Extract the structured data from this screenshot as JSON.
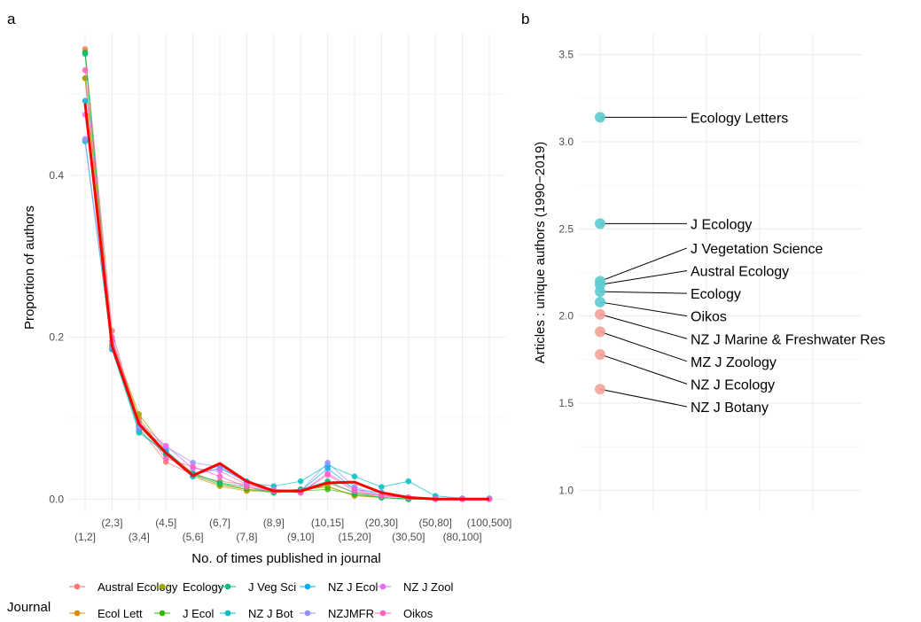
{
  "panel_a_label": "a",
  "panel_b_label": "b",
  "legend_title": "Journal",
  "chart_data": [
    {
      "type": "line",
      "xlabel": "No. of times published in journal",
      "ylabel": "Proportion of authors",
      "categories": [
        "(1,2]",
        "(2,3]",
        "(3,4]",
        "(4,5]",
        "(5,6]",
        "(6,7]",
        "(7,8]",
        "(8,9]",
        "(9,10]",
        "(10,15]",
        "(15,20]",
        "(20,30]",
        "(30,50]",
        "(50,80]",
        "(80,100]",
        "(100,500]"
      ],
      "ylim": [
        -0.015,
        0.575
      ],
      "yticks": [
        0.0,
        0.2,
        0.4
      ],
      "ytick_labels": [
        "0.0",
        "0.2",
        "0.4"
      ],
      "grid": true,
      "legend_position": "bottom",
      "series": [
        {
          "name": "Austral Ecology",
          "color": "#F8766D",
          "values": [
            0.556,
            0.208,
            0.088,
            0.046,
            0.03,
            0.022,
            0.018,
            0.01,
            0.008,
            0.02,
            0.008,
            0.004,
            0.002,
            0.0,
            0.0,
            0.0
          ]
        },
        {
          "name": "Ecol Lett",
          "color": "#D89000",
          "values": [
            0.52,
            0.195,
            0.1,
            0.055,
            0.028,
            0.016,
            0.01,
            0.01,
            0.012,
            0.016,
            0.004,
            0.002,
            0.0,
            0.0,
            0.0,
            0.0
          ]
        },
        {
          "name": "Ecology",
          "color": "#A3A500",
          "values": [
            0.52,
            0.195,
            0.105,
            0.06,
            0.032,
            0.02,
            0.012,
            0.01,
            0.012,
            0.015,
            0.005,
            0.002,
            0.0,
            0.0,
            0.0,
            0.0
          ]
        },
        {
          "name": "J Ecol",
          "color": "#39B600",
          "values": [
            0.552,
            0.19,
            0.09,
            0.055,
            0.03,
            0.018,
            0.012,
            0.008,
            0.01,
            0.012,
            0.006,
            0.002,
            0.0,
            0.0,
            0.0,
            0.0
          ]
        },
        {
          "name": "J Veg Sci",
          "color": "#00BF7D",
          "values": [
            0.55,
            0.188,
            0.085,
            0.055,
            0.032,
            0.02,
            0.015,
            0.008,
            0.012,
            0.022,
            0.008,
            0.002,
            0.0,
            0.0,
            0.0,
            0.0
          ]
        },
        {
          "name": "NZ J Bot",
          "color": "#00BFC4",
          "values": [
            0.442,
            0.185,
            0.082,
            0.058,
            0.028,
            0.042,
            0.02,
            0.016,
            0.022,
            0.042,
            0.028,
            0.015,
            0.022,
            0.004,
            0.001,
            0.001
          ]
        },
        {
          "name": "NZ J Ecol",
          "color": "#00B0F6",
          "values": [
            0.492,
            0.185,
            0.09,
            0.06,
            0.03,
            0.038,
            0.022,
            0.01,
            0.01,
            0.038,
            0.012,
            0.008,
            0.002,
            0.0,
            0.0,
            0.0
          ]
        },
        {
          "name": "NZJMFR",
          "color": "#9590FF",
          "values": [
            0.445,
            0.188,
            0.088,
            0.065,
            0.045,
            0.04,
            0.02,
            0.012,
            0.01,
            0.045,
            0.015,
            0.005,
            0.002,
            0.0,
            0.0,
            0.0
          ]
        },
        {
          "name": "NZ J Zool",
          "color": "#E76BF3",
          "values": [
            0.475,
            0.195,
            0.095,
            0.066,
            0.038,
            0.035,
            0.018,
            0.01,
            0.008,
            0.032,
            0.012,
            0.004,
            0.002,
            0.0,
            0.0,
            0.0
          ]
        },
        {
          "name": "Oikos",
          "color": "#FF62BC",
          "values": [
            0.53,
            0.2,
            0.095,
            0.05,
            0.04,
            0.028,
            0.015,
            0.01,
            0.008,
            0.03,
            0.01,
            0.004,
            0.002,
            0.0,
            0.0,
            0.0
          ]
        }
      ],
      "mean_line": {
        "color": "#FF0000",
        "values": [
          0.489,
          0.189,
          0.093,
          0.057,
          0.029,
          0.044,
          0.022,
          0.01,
          0.01,
          0.02,
          0.021,
          0.008,
          0.002,
          0.0,
          0.0,
          0.0
        ]
      }
    },
    {
      "type": "scatter",
      "ylabel": "Articles : unique authors (1990−2019)",
      "ylim": [
        0.88,
        3.62
      ],
      "yticks": [
        1.0,
        1.5,
        2.0,
        2.5,
        3.0,
        3.5
      ],
      "ytick_labels": [
        "1.0",
        "1.5",
        "2.0",
        "2.5",
        "3.0",
        "3.5"
      ],
      "grid": true,
      "colors": {
        "international": "#5CCBD0",
        "nz": "#F3A299"
      },
      "points": [
        {
          "label": "Ecology Letters",
          "y": 3.14,
          "group": "international"
        },
        {
          "label": "J Ecology",
          "y": 2.53,
          "group": "international"
        },
        {
          "label": "J Vegetation Science",
          "y": 2.2,
          "group": "international"
        },
        {
          "label": "Austral Ecology",
          "y": 2.18,
          "group": "international"
        },
        {
          "label": "Ecology",
          "y": 2.14,
          "group": "international"
        },
        {
          "label": "Oikos",
          "y": 2.08,
          "group": "international"
        },
        {
          "label": "NZ J Marine & Freshwater Res",
          "y": 2.01,
          "group": "nz"
        },
        {
          "label": "MZ J Zoology",
          "y": 1.91,
          "group": "nz"
        },
        {
          "label": "NZ J Ecology",
          "y": 1.78,
          "group": "nz"
        },
        {
          "label": "NZ J Botany",
          "y": 1.58,
          "group": "nz"
        }
      ],
      "label_y": [
        3.14,
        2.53,
        2.39,
        2.26,
        2.13,
        2.0,
        1.87,
        1.74,
        1.61,
        1.48
      ]
    }
  ]
}
